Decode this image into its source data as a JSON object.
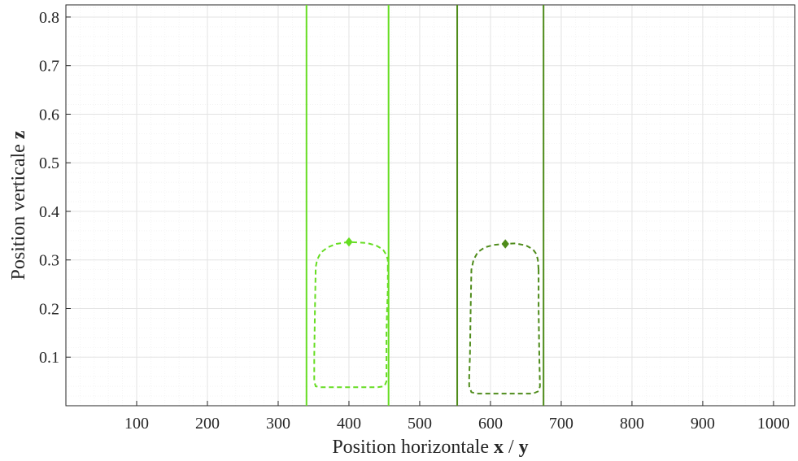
{
  "chart_data": {
    "type": "line",
    "xlabel": "Position horizontale x / y",
    "xlabel_parts": [
      "Position horizontale ",
      "x",
      " / ",
      "y"
    ],
    "ylabel": "Position verticale z",
    "ylabel_parts": [
      "Position verticale ",
      "z"
    ],
    "xlim": [
      0,
      1030
    ],
    "ylim": [
      0,
      0.825
    ],
    "xticks": [
      100,
      200,
      300,
      400,
      500,
      600,
      700,
      800,
      900,
      1000
    ],
    "xtick_labels": [
      "100",
      "200",
      "300",
      "400",
      "500",
      "600",
      "700",
      "800",
      "900",
      "1000"
    ],
    "yticks": [
      0.1,
      0.2,
      0.3,
      0.4,
      0.5,
      0.6,
      0.7,
      0.8
    ],
    "ytick_labels": [
      "0.1",
      "0.2",
      "0.3",
      "0.4",
      "0.5",
      "0.6",
      "0.7",
      "0.8"
    ],
    "grid": true,
    "minor_grid": true,
    "legend": "none",
    "series": [
      {
        "group": "left",
        "color": "#66dd22",
        "vertical_lines_x": [
          340,
          456
        ],
        "contour": [
          [
            455,
            0.28
          ],
          [
            455,
            0.3
          ],
          [
            453,
            0.31
          ],
          [
            448,
            0.322
          ],
          [
            438,
            0.33
          ],
          [
            425,
            0.335
          ],
          [
            400,
            0.337
          ],
          [
            382,
            0.333
          ],
          [
            370,
            0.326
          ],
          [
            360,
            0.315
          ],
          [
            355,
            0.3
          ],
          [
            353,
            0.285
          ],
          [
            352,
            0.2
          ],
          [
            351,
            0.1
          ],
          [
            351,
            0.05
          ],
          [
            353,
            0.04
          ],
          [
            360,
            0.038
          ],
          [
            400,
            0.038
          ],
          [
            440,
            0.038
          ],
          [
            450,
            0.04
          ],
          [
            453,
            0.05
          ],
          [
            453,
            0.1
          ],
          [
            453,
            0.15
          ],
          [
            454,
            0.2
          ],
          [
            455,
            0.24
          ],
          [
            455,
            0.28
          ]
        ],
        "peak_marker": [
          400,
          0.337
        ]
      },
      {
        "group": "right",
        "color": "#4e8b1a",
        "vertical_lines_x": [
          553,
          675
        ],
        "contour": [
          [
            668,
            0.28
          ],
          [
            667,
            0.3
          ],
          [
            665,
            0.312
          ],
          [
            660,
            0.322
          ],
          [
            650,
            0.33
          ],
          [
            635,
            0.334
          ],
          [
            620,
            0.333
          ],
          [
            605,
            0.331
          ],
          [
            592,
            0.326
          ],
          [
            582,
            0.316
          ],
          [
            576,
            0.3
          ],
          [
            573,
            0.28
          ],
          [
            572,
            0.2
          ],
          [
            571,
            0.1
          ],
          [
            570,
            0.06
          ],
          [
            570,
            0.04
          ],
          [
            573,
            0.028
          ],
          [
            580,
            0.025
          ],
          [
            620,
            0.025
          ],
          [
            660,
            0.025
          ],
          [
            668,
            0.03
          ],
          [
            670,
            0.04
          ],
          [
            669,
            0.1
          ],
          [
            668,
            0.2
          ],
          [
            668,
            0.28
          ]
        ],
        "peak_marker": [
          621,
          0.333
        ]
      }
    ]
  }
}
